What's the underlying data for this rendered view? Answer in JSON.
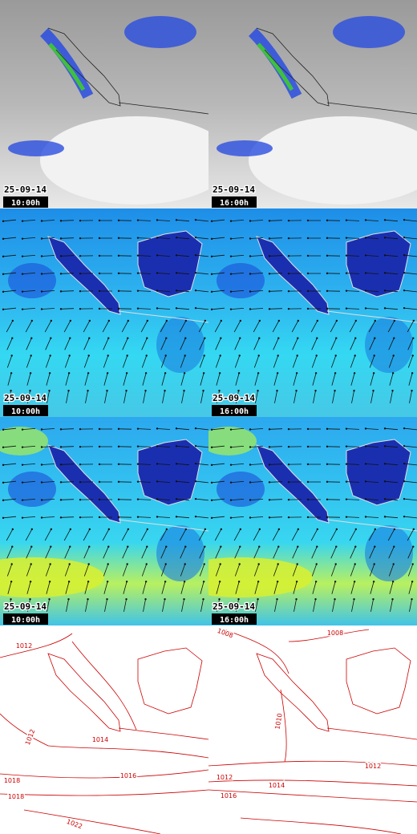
{
  "panels": [
    {
      "date": "25-09-14",
      "time": "10:00h"
    },
    {
      "date": "25-09-14",
      "time": "16:00h"
    },
    {
      "date": "25-09-14",
      "time": "10:00h"
    },
    {
      "date": "25-09-14",
      "time": "16:00h"
    },
    {
      "date": "25-09-14",
      "time": "10:00h"
    },
    {
      "date": "25-09-14",
      "time": "16:00h"
    }
  ],
  "pressure_maps": [
    {
      "labels": [
        1012,
        1012,
        1014,
        1016,
        1018,
        1018,
        1022
      ]
    },
    {
      "labels": [
        1008,
        1008,
        1010,
        1012,
        1012,
        1014,
        1016
      ]
    }
  ]
}
